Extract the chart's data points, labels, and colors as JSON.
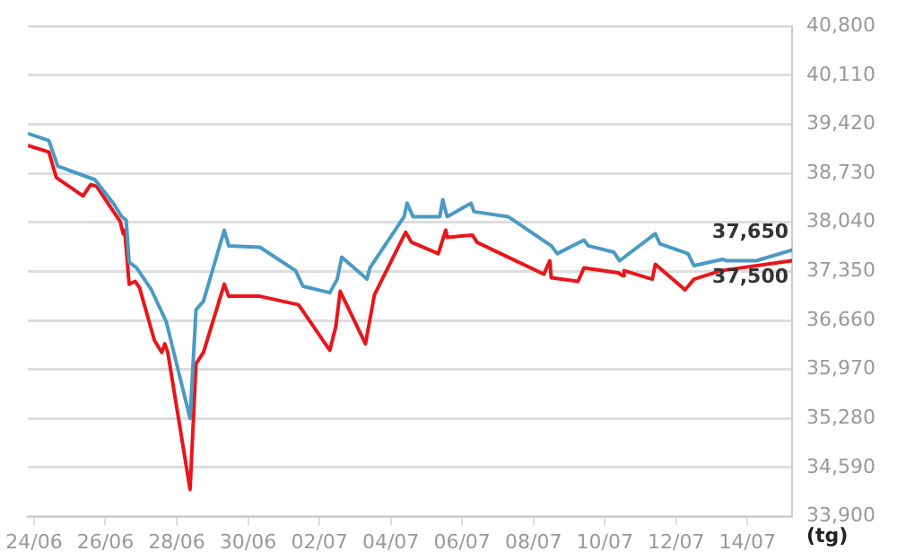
{
  "chart_data": {
    "type": "line",
    "ylabel": "(tg)",
    "xlim": [
      "--06-23T20:00",
      "--07-15T06:00"
    ],
    "xticks": [
      {
        "value": "--06-24",
        "label": "24/06"
      },
      {
        "value": "--06-26",
        "label": "26/06"
      },
      {
        "value": "--06-28",
        "label": "28/06"
      },
      {
        "value": "--06-30",
        "label": "30/06"
      },
      {
        "value": "--07-02",
        "label": "02/07"
      },
      {
        "value": "--07-04",
        "label": "04/07"
      },
      {
        "value": "--07-06",
        "label": "06/07"
      },
      {
        "value": "--07-08",
        "label": "08/07"
      },
      {
        "value": "--07-10",
        "label": "10/07"
      },
      {
        "value": "--07-12",
        "label": "12/07"
      },
      {
        "value": "--07-14",
        "label": "14/07"
      }
    ],
    "ylim": [
      33900,
      40800
    ],
    "yticks": [
      {
        "value": 33900,
        "label": "33,900"
      },
      {
        "value": 34590,
        "label": "34,590"
      },
      {
        "value": 35280,
        "label": "35,280"
      },
      {
        "value": 35970,
        "label": "35,970"
      },
      {
        "value": 36660,
        "label": "36,660"
      },
      {
        "value": 37350,
        "label": "37,350"
      },
      {
        "value": 38040,
        "label": "38,040"
      },
      {
        "value": 38730,
        "label": "38,730"
      },
      {
        "value": 39420,
        "label": "39,420"
      },
      {
        "value": 40110,
        "label": "40,110"
      },
      {
        "value": 40800,
        "label": "40,800"
      }
    ],
    "grid": "y",
    "legend": false,
    "marker": "none",
    "line_style": "solid",
    "series": [
      {
        "color": "#4a9ac4",
        "x": [
          "--06-23T20:00",
          "--06-24T10:00",
          "--06-24T16:00",
          "--06-25T17:00",
          "--06-26T06:00",
          "--06-26T11:00",
          "--06-26T14:00",
          "--06-26T16:00",
          "--06-26T21:00",
          "--06-27T07:00",
          "--06-27T17:00",
          "--06-28T09:00",
          "--06-28T13:00",
          "--06-28T18:00",
          "--06-29T08:00",
          "--06-29T11:00",
          "--06-30T08:00",
          "--07-01T08:00",
          "--07-01T13:00",
          "--07-02T07:00",
          "--07-02T12:00",
          "--07-02T15:00",
          "--07-03T08:00",
          "--07-03T10:00",
          "--07-04T09:00",
          "--07-04T11:00",
          "--07-04T15:00",
          "--07-05T09:00",
          "--07-05T11:00",
          "--07-05T13:00",
          "--07-05T14:00",
          "--07-06T06:00",
          "--07-06T08:00",
          "--07-07T07:00",
          "--07-08T12:00",
          "--07-08T16:00",
          "--07-09T10:00",
          "--07-09T13:00",
          "--07-10T06:00",
          "--07-10T10:00",
          "--07-11T10:00",
          "--07-11T13:00",
          "--07-12T08:00",
          "--07-12T12:00",
          "--07-13T07:00",
          "--07-13T10:00",
          "--07-14T06:00",
          "--07-15T06:00"
        ],
        "values": [
          39290,
          39190,
          38830,
          38640,
          38290,
          38120,
          38070,
          37480,
          37400,
          37090,
          36640,
          35280,
          36810,
          36930,
          37930,
          37710,
          37690,
          37360,
          37140,
          37050,
          37240,
          37550,
          37240,
          37400,
          38120,
          38310,
          38120,
          38120,
          38360,
          38190,
          38120,
          38310,
          38190,
          38120,
          37710,
          37600,
          37790,
          37710,
          37620,
          37500,
          37880,
          37740,
          37600,
          37430,
          37520,
          37500,
          37500,
          37650
        ]
      },
      {
        "color": "#e8161b",
        "x": [
          "--06-23T20:00",
          "--06-24T10:00",
          "--06-24T15:00",
          "--06-25T09:00",
          "--06-25T14:00",
          "--06-25T18:00",
          "--06-26T10:00",
          "--06-26T12:00",
          "--06-26T13:00",
          "--06-26T16:00",
          "--06-26T20:00",
          "--06-26T23:00",
          "--06-27T09:00",
          "--06-27T14:00",
          "--06-27T16:00",
          "--06-27T18:00",
          "--06-28T09:00",
          "--06-28T13:00",
          "--06-28T18:00",
          "--06-29T08:00",
          "--06-29T11:00",
          "--06-30T08:00",
          "--07-01T10:00",
          "--07-02T07:00",
          "--07-02T11:00",
          "--07-02T14:00",
          "--07-03T07:00",
          "--07-03T13:00",
          "--07-04T10:00",
          "--07-04T14:00",
          "--07-05T08:00",
          "--07-05T13:00",
          "--07-05T14:00",
          "--07-06T07:00",
          "--07-06T10:00",
          "--07-07T02:00",
          "--07-08T07:00",
          "--07-08T11:00",
          "--07-08T12:00",
          "--07-09T06:00",
          "--07-09T10:00",
          "--07-10T09:00",
          "--07-10T12:00",
          "--07-10T13:00",
          "--07-11T08:00",
          "--07-11T10:00",
          "--07-12T06:00",
          "--07-12T12:00",
          "--07-13T06:00",
          "--07-15T06:00"
        ],
        "values": [
          39120,
          39030,
          38670,
          38410,
          38570,
          38550,
          38050,
          37880,
          37930,
          37170,
          37210,
          37120,
          36380,
          36210,
          36330,
          36210,
          34280,
          36050,
          36210,
          37170,
          37000,
          37000,
          36880,
          36240,
          36570,
          37070,
          36330,
          37020,
          37900,
          37760,
          37600,
          37930,
          37830,
          37860,
          37760,
          37600,
          37310,
          37500,
          37260,
          37210,
          37400,
          37330,
          37290,
          37360,
          37240,
          37450,
          37090,
          37240,
          37360,
          37500
        ]
      }
    ],
    "annotations": [
      {
        "text": "37,650",
        "x": "--07-15T06:00",
        "y": 37650
      },
      {
        "text": "37,500",
        "x": "--07-15T06:00",
        "y": 37500
      }
    ]
  }
}
